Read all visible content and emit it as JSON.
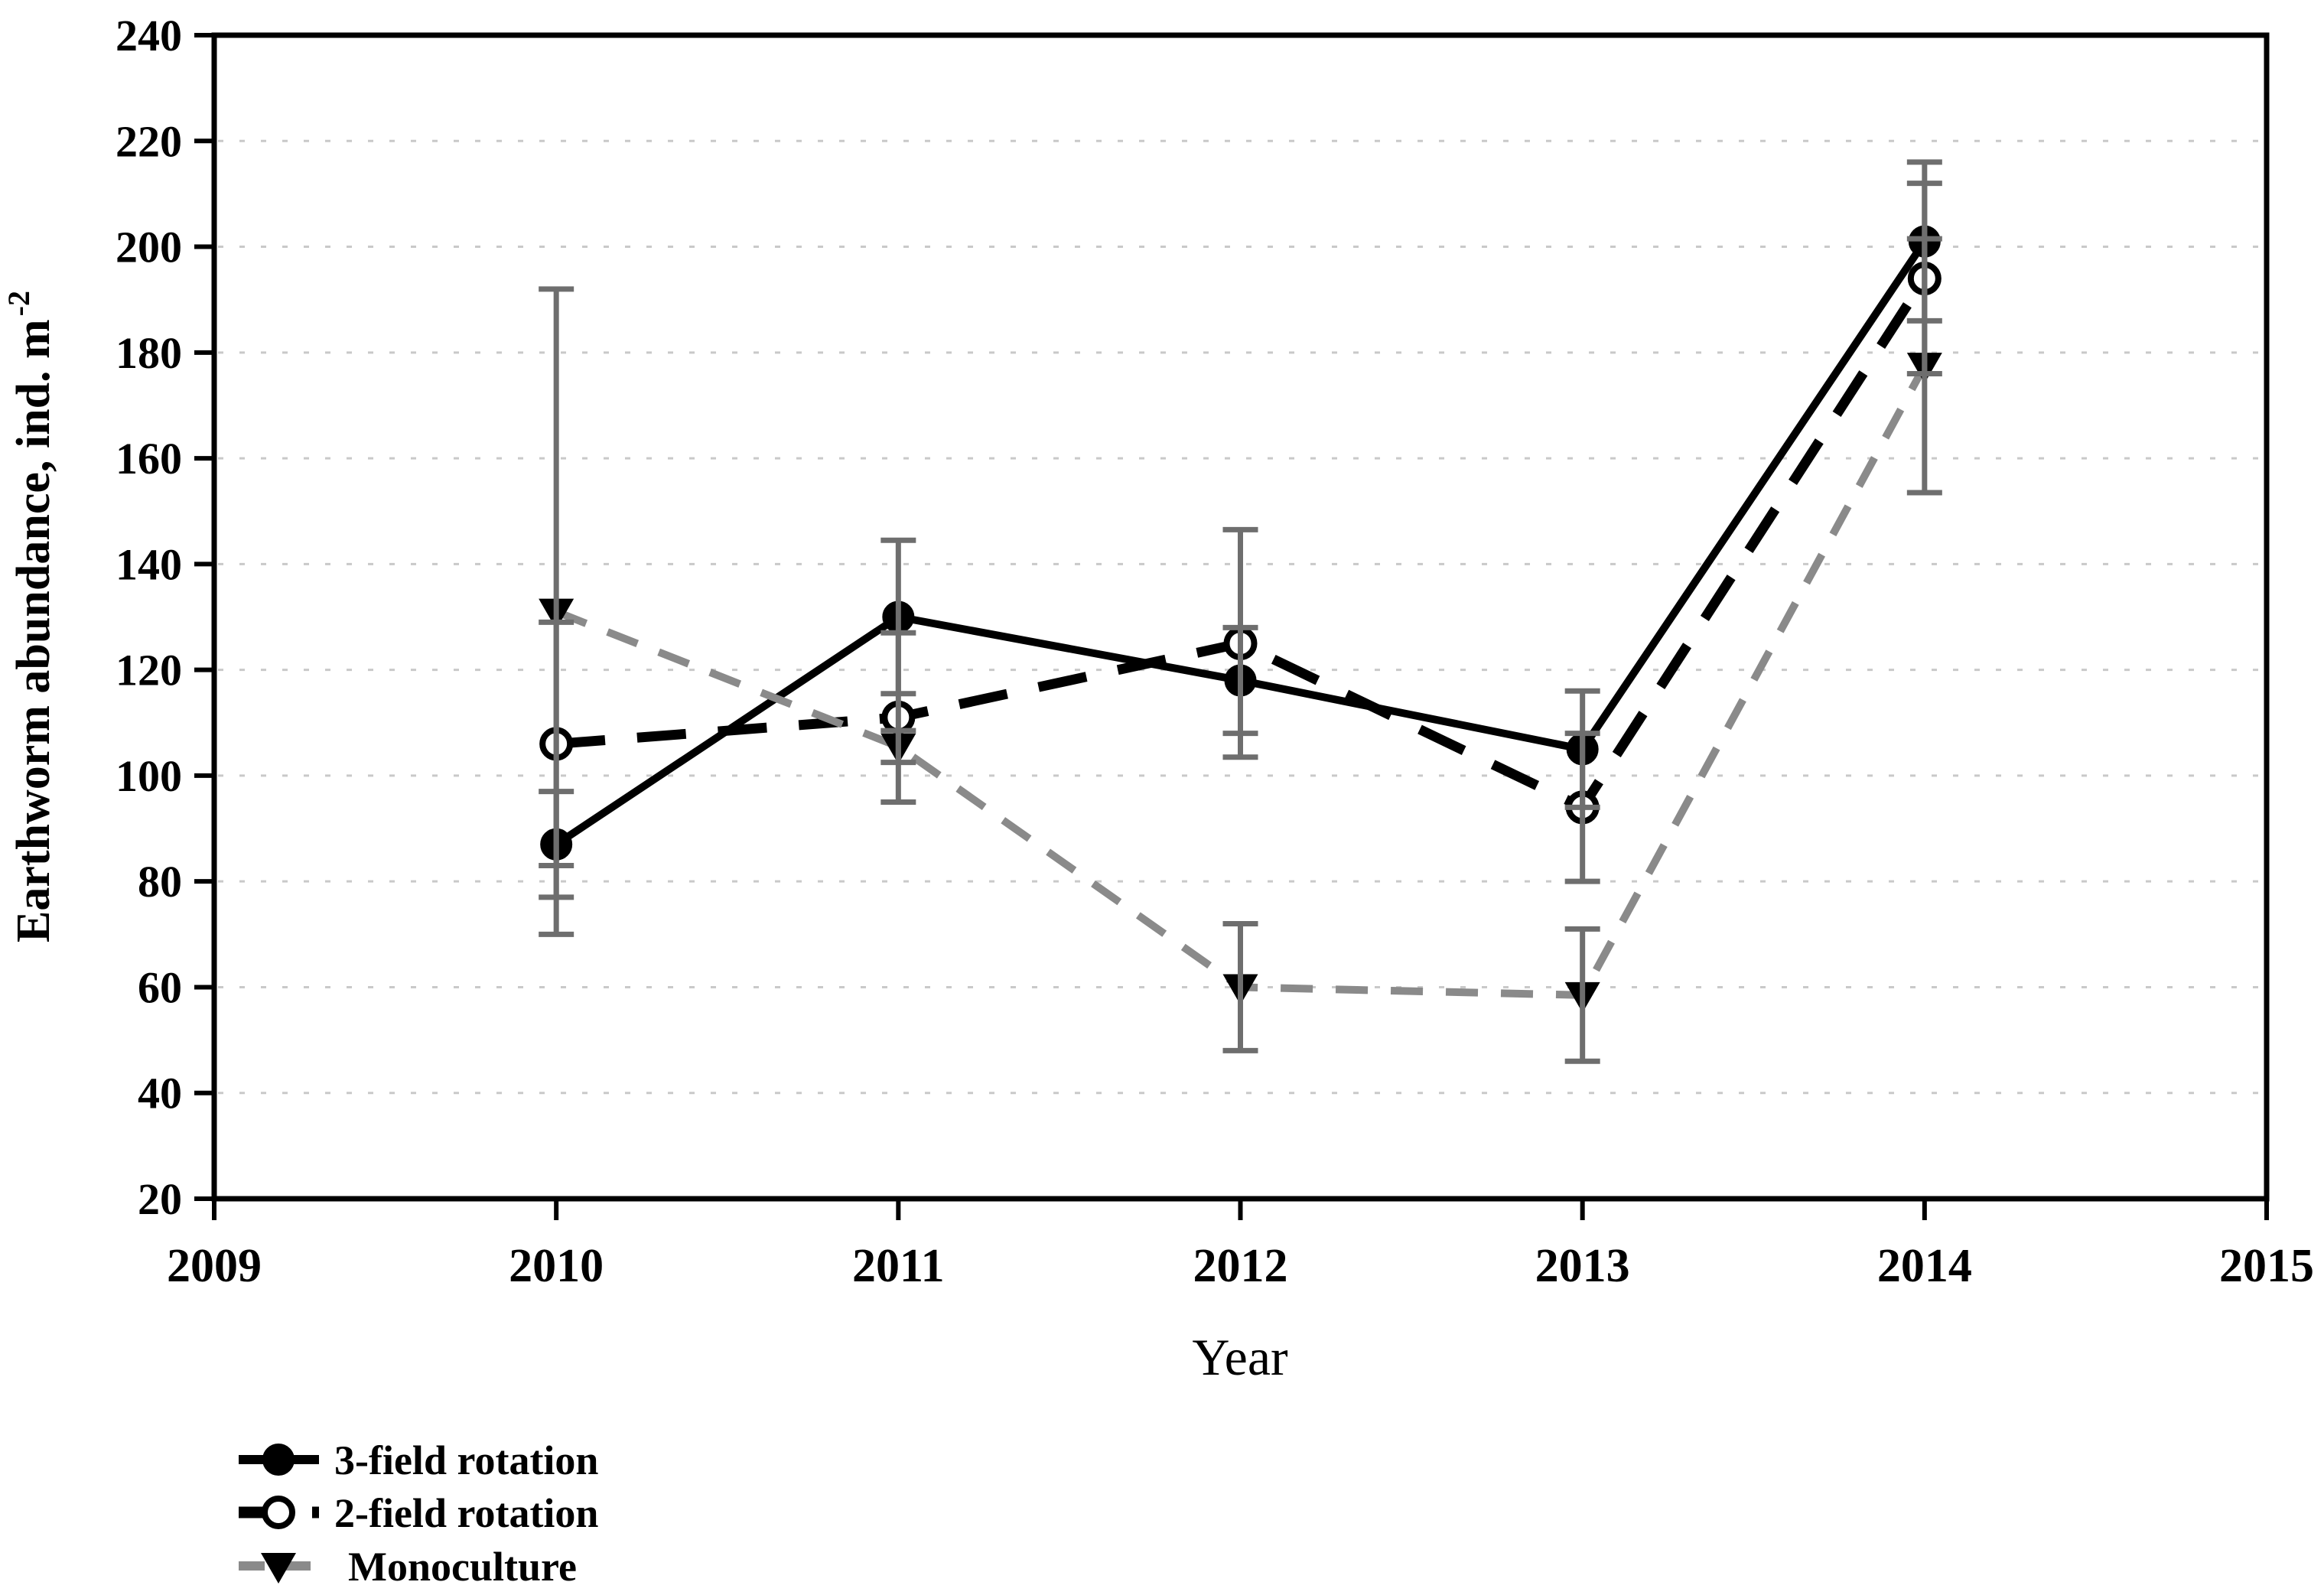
{
  "figure": {
    "y_axis_title": "Earthworm abundance, ind. m",
    "y_axis_title_superscript": "-2",
    "x_axis_title": "Year"
  },
  "legend": {
    "items": [
      {
        "label": "3-field rotation"
      },
      {
        "label": "2-field rotation"
      },
      {
        "label": "Monoculture"
      }
    ]
  },
  "chart_data": {
    "type": "line",
    "title": "",
    "xlabel": "Year",
    "ylabel": "Earthworm abundance, ind. m-2",
    "x": [
      2010,
      2011,
      2012,
      2013,
      2014
    ],
    "xlim": [
      2009,
      2015
    ],
    "ylim": [
      20,
      240
    ],
    "x_ticks": [
      2009,
      2010,
      2011,
      2012,
      2013,
      2014,
      2015
    ],
    "y_ticks": [
      20,
      40,
      60,
      80,
      100,
      120,
      140,
      160,
      180,
      200,
      220,
      240
    ],
    "grid": "horizontal-dotted",
    "legend_position": "bottom-left",
    "series": [
      {
        "name": "3-field rotation",
        "marker": "filled-circle",
        "line_style": "solid",
        "color": "#000000",
        "values": [
          87,
          130,
          118,
          105,
          201
        ],
        "errors": [
          10,
          14.5,
          10,
          11,
          15
        ]
      },
      {
        "name": "2-field rotation",
        "marker": "open-circle",
        "line_style": "long-dash",
        "color": "#000000",
        "values": [
          106,
          111,
          125,
          94,
          194
        ],
        "errors": [
          23,
          16,
          21.5,
          14,
          18
        ]
      },
      {
        "name": "Monoculture",
        "marker": "filled-triangle-down",
        "line_style": "short-dash",
        "color": "#8a8a8a",
        "values": [
          131,
          105.5,
          60,
          58.5,
          177.5
        ],
        "errors": [
          61,
          3,
          12,
          12.5,
          24
        ]
      }
    ],
    "error_bar_color": "#6e6e6e",
    "grid_color": "#c9c9c9",
    "frame_color": "#000000"
  }
}
